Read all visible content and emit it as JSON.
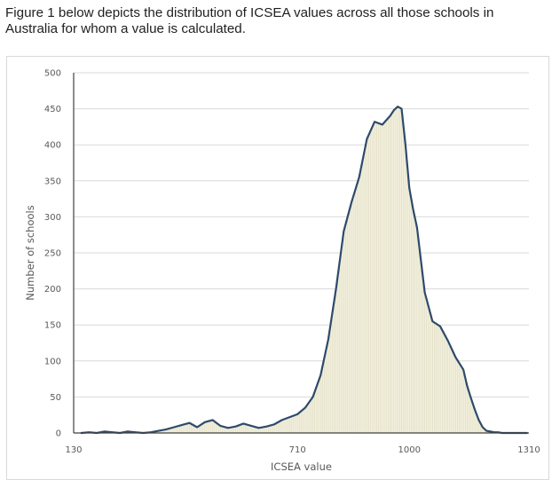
{
  "intro_text": "Figure 1 below depicts the distribution of ICSEA values across all those schools in Australia for whom a value is calculated.",
  "chart_data": {
    "type": "area",
    "title": "",
    "xlabel": "ICSEA value",
    "ylabel": "Number of schools",
    "xlim": [
      130,
      1310
    ],
    "ylim": [
      0,
      500
    ],
    "x_ticks": [
      {
        "value": 130,
        "label": "130"
      },
      {
        "value": 710,
        "label": "710"
      },
      {
        "value": 1000,
        "label": "1000"
      },
      {
        "value": 1310,
        "label": "1310"
      }
    ],
    "y_ticks": [
      0,
      50,
      100,
      150,
      200,
      250,
      300,
      350,
      400,
      450,
      500
    ],
    "gridlines": true,
    "legend": "none",
    "colors": {
      "line": "#2e4a6b",
      "fill": "#f3f1df",
      "grid": "#d9d9d9"
    },
    "series": [
      {
        "x": [
          150,
          170,
          190,
          210,
          230,
          250,
          270,
          290,
          310,
          330,
          350,
          370,
          390,
          410,
          430,
          450,
          470,
          490,
          510,
          530,
          550,
          570,
          590,
          610,
          630,
          650,
          670,
          690,
          710,
          730,
          750,
          770,
          790,
          810,
          830,
          850,
          870,
          890,
          910,
          930,
          950,
          960,
          970,
          980,
          990,
          1000,
          1010,
          1020,
          1030,
          1040,
          1050,
          1060,
          1080,
          1100,
          1120,
          1140,
          1150,
          1160,
          1170,
          1180,
          1190,
          1200,
          1210,
          1220,
          1230,
          1240,
          1250,
          1260,
          1270,
          1290,
          1305
        ],
        "values": [
          0,
          1,
          0,
          2,
          1,
          0,
          2,
          1,
          0,
          1,
          3,
          5,
          8,
          11,
          14,
          8,
          15,
          18,
          10,
          7,
          9,
          13,
          10,
          7,
          9,
          12,
          18,
          22,
          26,
          35,
          50,
          80,
          130,
          200,
          280,
          320,
          355,
          408,
          432,
          428,
          440,
          448,
          453,
          450,
          400,
          340,
          310,
          285,
          240,
          195,
          175,
          155,
          148,
          128,
          105,
          88,
          65,
          48,
          32,
          18,
          8,
          3,
          2,
          1,
          1,
          0,
          0,
          0,
          0,
          0,
          0
        ]
      }
    ]
  }
}
